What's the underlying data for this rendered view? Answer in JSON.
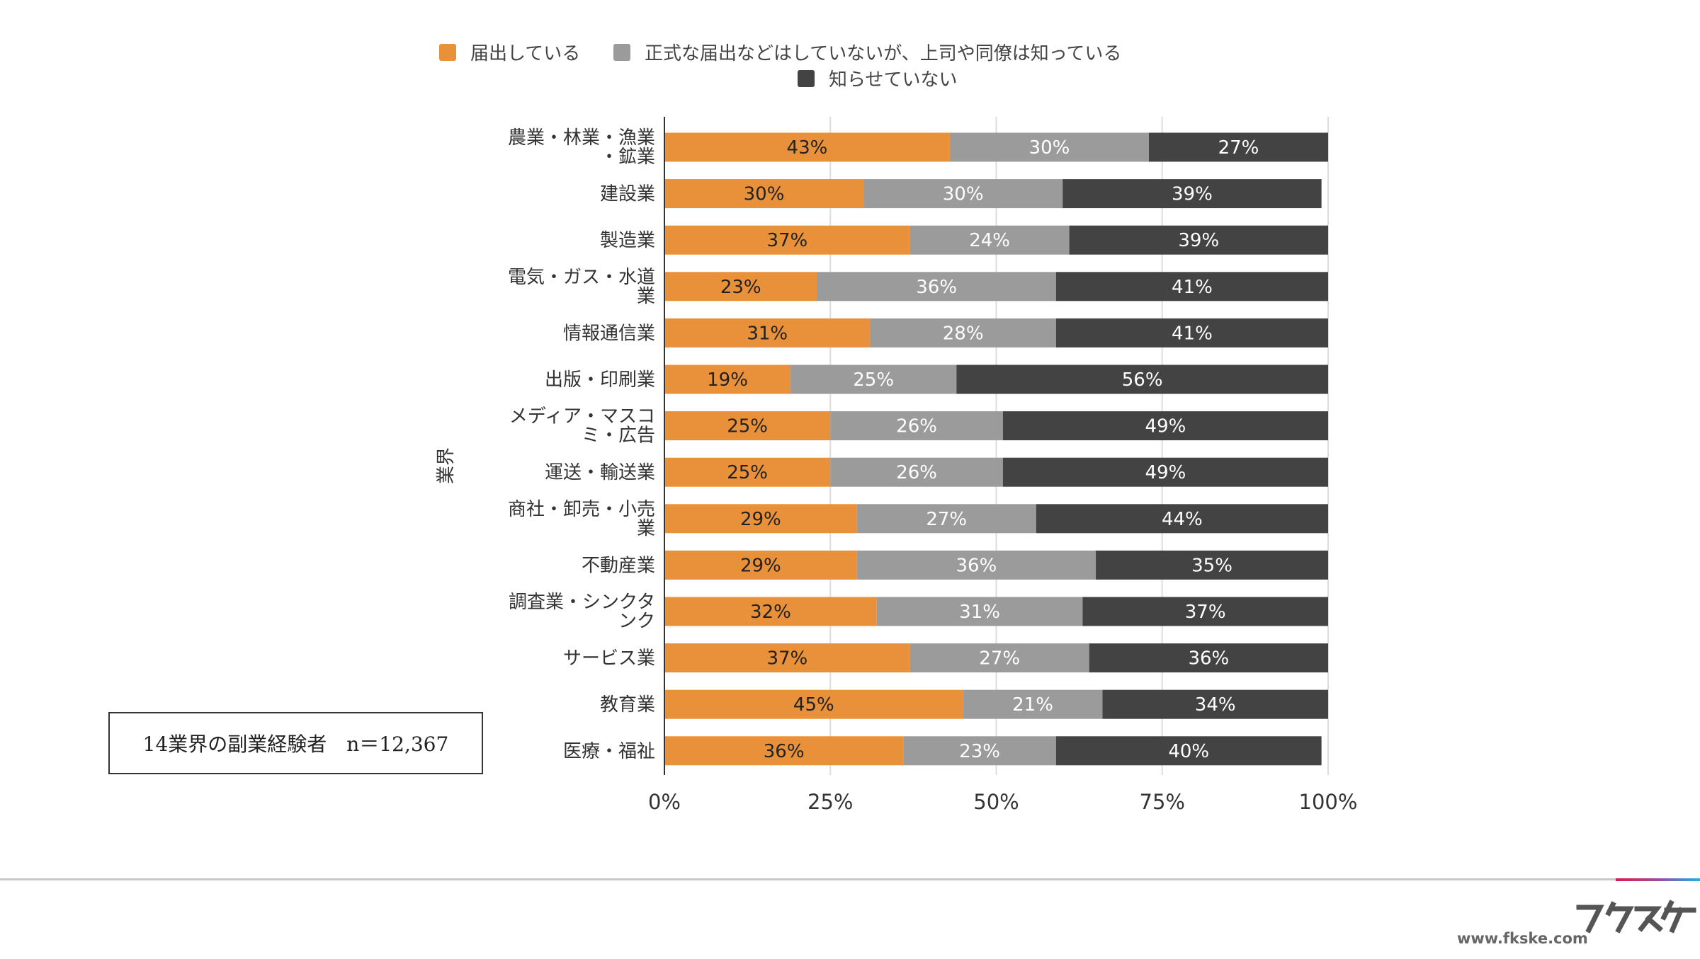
{
  "chart_data": {
    "type": "bar",
    "orientation": "horizontal",
    "stacked": "percent",
    "ylabel": "業界",
    "xlim": [
      0,
      100
    ],
    "xticks": [
      "0%",
      "25%",
      "50%",
      "75%",
      "100%"
    ],
    "grid": true,
    "legend_position": "top",
    "categories": [
      [
        "農業・林業・漁業",
        "・鉱業"
      ],
      [
        "建設業"
      ],
      [
        "製造業"
      ],
      [
        "電気・ガス・水道",
        "業"
      ],
      [
        "情報通信業"
      ],
      [
        "出版・印刷業"
      ],
      [
        "メディア・マスコ",
        "ミ・広告"
      ],
      [
        "運送・輸送業"
      ],
      [
        "商社・卸売・小売",
        "業"
      ],
      [
        "不動産業"
      ],
      [
        "調査業・シンクタ",
        "ンク"
      ],
      [
        "サービス業"
      ],
      [
        "教育業"
      ],
      [
        "医療・福祉"
      ]
    ],
    "series": [
      {
        "name": "届出している",
        "color": "#E8913A",
        "values": [
          43,
          30,
          37,
          23,
          31,
          19,
          25,
          25,
          29,
          29,
          32,
          37,
          45,
          36
        ]
      },
      {
        "name": "正式な届出などはしていないが、上司や同僚は知っている",
        "color": "#9B9B9B",
        "values": [
          30,
          30,
          24,
          36,
          28,
          25,
          26,
          26,
          27,
          36,
          31,
          27,
          21,
          23
        ]
      },
      {
        "name": "知らせていない",
        "color": "#434343",
        "values": [
          27,
          39,
          39,
          41,
          41,
          56,
          49,
          49,
          44,
          35,
          37,
          36,
          34,
          40
        ]
      }
    ]
  },
  "note": "14業界の副業経験者　n＝12,367",
  "footer": {
    "url": "www.fkske.com",
    "logo": "フクスケ"
  }
}
